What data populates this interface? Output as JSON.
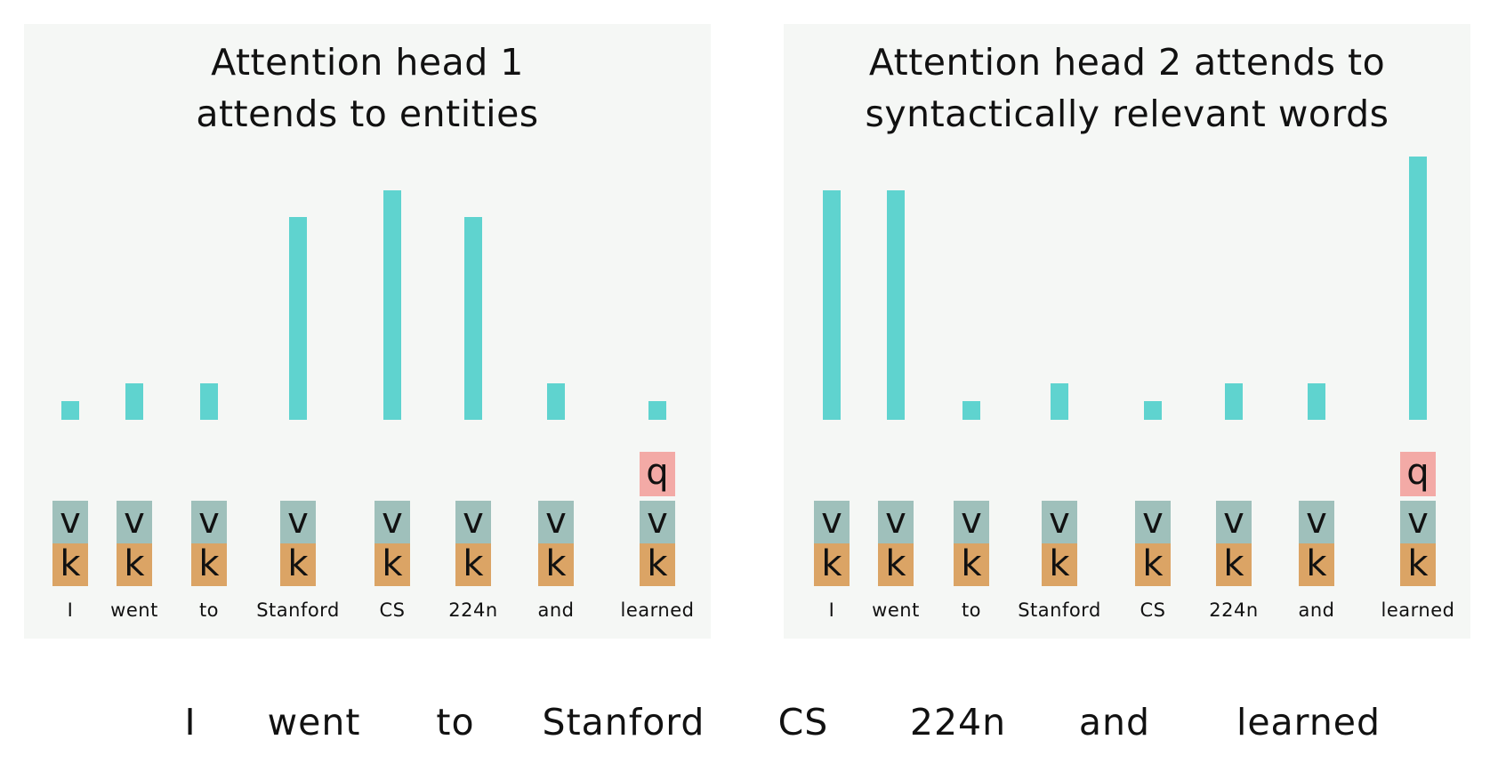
{
  "words": [
    "I",
    "went",
    "to",
    "Stanford",
    "CS",
    "224n",
    "and",
    "learned"
  ],
  "key_label": "k",
  "value_label": "v",
  "query_label": "q",
  "colors": {
    "panel_background": "#f5f7f5",
    "attention_bar": "#5fd3cf",
    "value_cell": "#9fc0bb",
    "key_cell": "#dba465",
    "query_cell": "#f3aaa6"
  },
  "heads": [
    {
      "title": "Attention head 1\nattends to entities",
      "attention_weights": [
        0.07,
        0.14,
        0.14,
        0.77,
        0.87,
        0.77,
        0.14,
        0.07
      ],
      "query_position": 7
    },
    {
      "title": "Attention head 2 attends to\nsyntactically relevant words",
      "attention_weights": [
        0.87,
        0.87,
        0.07,
        0.14,
        0.07,
        0.14,
        0.14,
        1.0
      ],
      "query_position": 7
    }
  ],
  "sentence": [
    "I",
    "went",
    "to",
    "Stanford",
    "CS",
    "224n",
    "and",
    "learned"
  ]
}
